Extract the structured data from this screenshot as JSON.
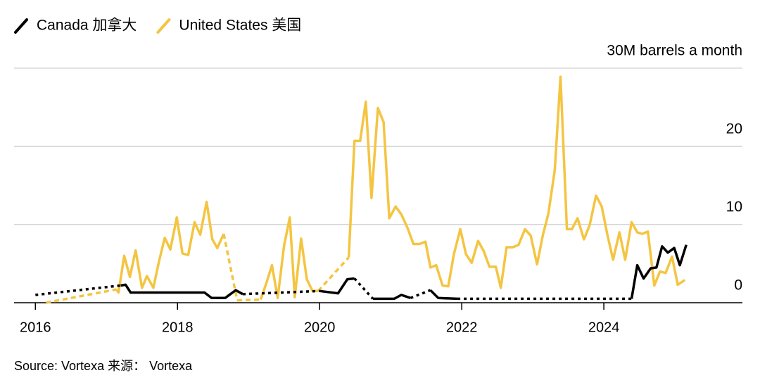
{
  "chart_data": {
    "type": "line",
    "source": "Source: Vortexa  来源： Vortexa",
    "xlim": [
      2015.7,
      2025.95
    ],
    "xticks": [
      2016,
      2018,
      2020,
      2022,
      2024
    ],
    "ylim": [
      0,
      30
    ],
    "yticks": [
      0,
      10,
      20,
      {
        "value": 30,
        "label": "30M barrels a month"
      }
    ],
    "grid": true,
    "legend": "top-left",
    "series": [
      {
        "name": "Canada 加拿大",
        "color": "#000000",
        "x": [
          2016.0,
          null,
          2017.2,
          2017.27,
          2017.34,
          2018.38,
          2018.48,
          2018.67,
          2018.82,
          2018.92,
          null,
          2020.0,
          2020.26,
          2020.39,
          2020.49,
          null,
          2020.75,
          2021.05,
          2021.15,
          2021.28,
          null,
          2021.56,
          2021.67,
          2021.94,
          null,
          2024.39,
          2024.47,
          2024.56,
          2024.66,
          2024.74,
          2024.82,
          2024.9,
          2024.99,
          2025.07,
          2025.16
        ],
        "values": [
          1.0,
          null,
          2.2,
          2.3,
          1.3,
          1.3,
          0.6,
          0.6,
          1.6,
          1.1,
          null,
          1.5,
          1.2,
          3.0,
          3.1,
          null,
          0.5,
          0.5,
          1.0,
          0.6,
          null,
          1.6,
          0.6,
          0.5,
          null,
          0.5,
          4.8,
          3.1,
          4.4,
          4.5,
          7.2,
          6.4,
          7.0,
          4.8,
          7.4
        ]
      },
      {
        "name": "United States 美国",
        "color": "#f4c542",
        "x": [
          2016.15,
          null,
          2017.14,
          2017.17,
          2017.25,
          2017.33,
          2017.41,
          2017.5,
          2017.57,
          2017.66,
          2017.74,
          2017.82,
          2017.9,
          2017.99,
          2018.07,
          2018.15,
          2018.24,
          2018.32,
          2018.41,
          2018.49,
          2018.56,
          2018.65,
          null,
          2018.84,
          null,
          2019.17,
          2019.25,
          2019.33,
          2019.41,
          2019.5,
          2019.58,
          2019.65,
          2019.74,
          2019.82,
          2019.9,
          2019.98,
          null,
          2020.41,
          2020.49,
          2020.57,
          2020.65,
          2020.73,
          2020.82,
          2020.9,
          2020.98,
          2021.07,
          2021.15,
          2021.24,
          2021.32,
          2021.4,
          2021.49,
          2021.56,
          2021.64,
          2021.73,
          2021.81,
          2021.89,
          2021.98,
          2022.06,
          2022.14,
          2022.23,
          2022.31,
          2022.39,
          2022.48,
          2022.55,
          2022.63,
          2022.72,
          2022.8,
          2022.89,
          2022.97,
          2023.06,
          2023.14,
          2023.22,
          2023.31,
          2023.39,
          2023.48,
          2023.55,
          2023.63,
          2023.72,
          2023.8,
          2023.89,
          2023.97,
          2024.05,
          2024.13,
          2024.22,
          2024.3,
          2024.39,
          2024.47,
          2024.54,
          2024.62,
          2024.71,
          2024.79,
          2024.87,
          2024.96,
          2025.04,
          2025.14
        ],
        "values": [
          0.0,
          null,
          1.7,
          1.3,
          6.0,
          3.3,
          6.7,
          1.9,
          3.4,
          1.9,
          5.3,
          8.3,
          6.8,
          10.9,
          6.3,
          6.1,
          10.3,
          8.7,
          12.9,
          8.1,
          7.0,
          8.8,
          null,
          0.3,
          null,
          0.4,
          2.5,
          4.8,
          0.6,
          7.3,
          10.9,
          0.7,
          8.2,
          3.0,
          1.5,
          1.5,
          null,
          5.8,
          20.7,
          20.7,
          25.7,
          13.4,
          24.9,
          23.1,
          10.8,
          12.3,
          11.3,
          9.5,
          7.5,
          7.5,
          7.8,
          4.5,
          4.8,
          2.2,
          2.1,
          6.2,
          9.4,
          6.2,
          5.1,
          7.9,
          6.6,
          4.6,
          4.6,
          1.9,
          7.1,
          7.1,
          7.4,
          9.4,
          8.6,
          4.9,
          8.6,
          11.4,
          17.0,
          28.9,
          9.4,
          9.4,
          10.8,
          8.1,
          9.9,
          13.7,
          12.3,
          8.7,
          5.5,
          9.0,
          5.5,
          10.3,
          9.0,
          8.8,
          9.1,
          2.2,
          4.0,
          3.8,
          5.9,
          2.3,
          2.9
        ]
      }
    ]
  }
}
